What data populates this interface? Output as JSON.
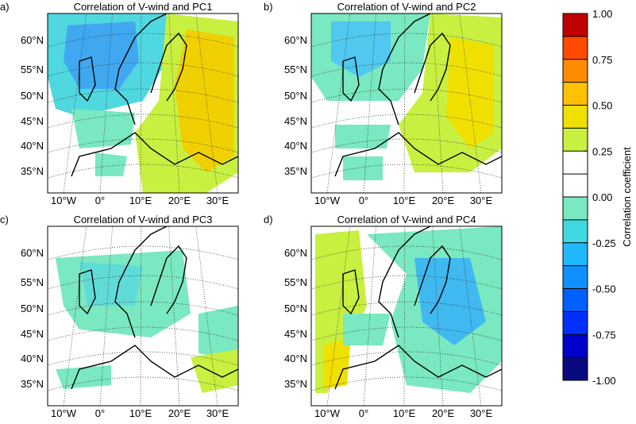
{
  "panels": [
    {
      "label": "a)",
      "title": "Correlation of V-wind and PC1",
      "lat_labels": [
        "60°N",
        "55°N",
        "50°N",
        "45°N",
        "40°N",
        "35°N"
      ],
      "lon_labels": [
        "10°W",
        "0°",
        "10°E",
        "20°E",
        "30°E"
      ]
    },
    {
      "label": "b)",
      "title": "Correlation of V-wind and PC2",
      "lat_labels": [
        "60°N",
        "55°N",
        "50°N",
        "45°N",
        "40°N",
        "35°N"
      ],
      "lon_labels": [
        "10°W",
        "0°",
        "10°E",
        "20°E",
        "30°E"
      ]
    },
    {
      "label": "c)",
      "title": "Correlation of V-wind and PC3",
      "lat_labels": [
        "60°N",
        "55°N",
        "50°N",
        "45°N",
        "40°N",
        "35°N"
      ],
      "lon_labels": [
        "10°W",
        "0°",
        "10°E",
        "20°E",
        "30°E"
      ]
    },
    {
      "label": "d)",
      "title": "Correlation of V-wind and PC4",
      "lat_labels": [
        "60°N",
        "55°N",
        "50°N",
        "45°N",
        "40°N",
        "35°N"
      ],
      "lon_labels": [
        "10°W",
        "0°",
        "10°E",
        "20°E",
        "30°E"
      ]
    }
  ],
  "colorbar": {
    "label": "Correlation coefficient",
    "lim": [
      -1,
      1
    ],
    "levels": [
      -1,
      -0.875,
      -0.75,
      -0.625,
      -0.5,
      -0.375,
      -0.25,
      -0.125,
      0,
      0.125,
      0.25,
      0.375,
      0.5,
      0.625,
      0.75,
      0.875,
      1
    ],
    "colors": [
      "#0a0a80",
      "#0000cc",
      "#0030ff",
      "#0060ff",
      "#1090ff",
      "#20b8ff",
      "#40d8e0",
      "#7ae8c0",
      "#ffffff",
      "#ffffff",
      "#c8f040",
      "#f0e000",
      "#ffc000",
      "#ff8c00",
      "#ff4a00",
      "#c00000"
    ],
    "ticks": [
      {
        "value": 1,
        "label": "1.00"
      },
      {
        "value": 0.75,
        "label": "0.75"
      },
      {
        "value": 0.5,
        "label": "0.50"
      },
      {
        "value": 0.25,
        "label": "0.25"
      },
      {
        "value": 0,
        "label": "0.00"
      },
      {
        "value": -0.25,
        "label": "-0.25"
      },
      {
        "value": -0.5,
        "label": "-0.50"
      },
      {
        "value": -0.75,
        "label": "-0.75"
      },
      {
        "value": -1,
        "label": "-1.00"
      }
    ]
  }
}
